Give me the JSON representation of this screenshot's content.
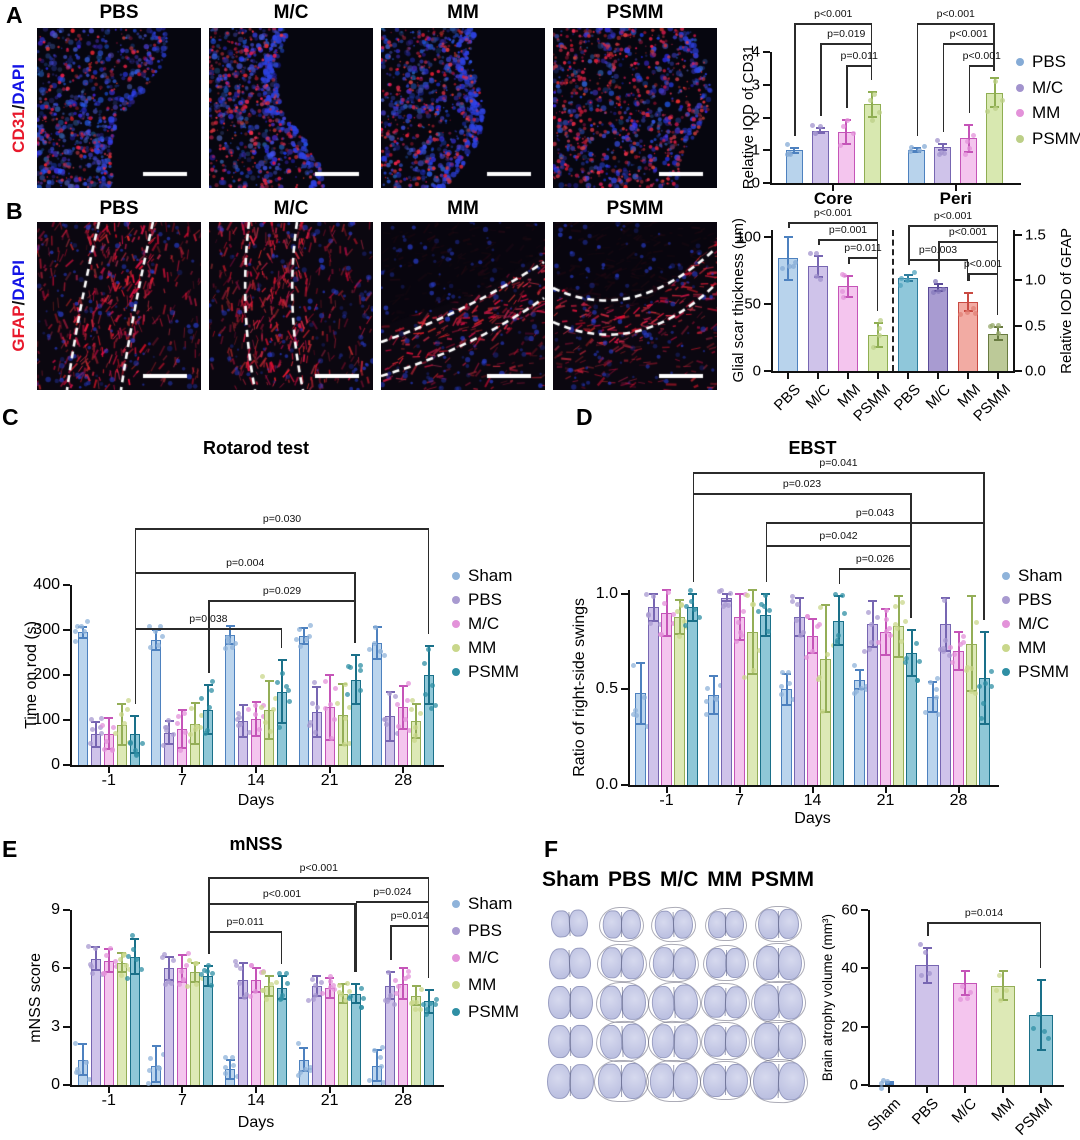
{
  "panels": {
    "A": "A",
    "B": "B",
    "C": "C",
    "D": "D",
    "E": "E",
    "F": "F"
  },
  "panelA": {
    "image_headers": [
      "PBS",
      "M/C",
      "MM",
      "PSMM"
    ],
    "side_label": [
      {
        "text": "CD31",
        "color": "#e8192c"
      },
      {
        "text": "/",
        "color": "#111111"
      },
      {
        "text": "DAPI",
        "color": "#1414e6"
      }
    ]
  },
  "panelB": {
    "image_headers": [
      "PBS",
      "M/C",
      "MM",
      "PSMM"
    ],
    "side_label": [
      {
        "text": "GFAP",
        "color": "#e8192c"
      },
      {
        "text": "/",
        "color": "#111111"
      },
      {
        "text": "DAPI",
        "color": "#1414e6"
      }
    ]
  },
  "panelF": {
    "columns": [
      "Sham",
      "PBS",
      "M/C",
      "MM",
      "PSMM"
    ]
  },
  "chart_data": [
    {
      "id": "cd31",
      "type": "bar",
      "title": "",
      "ylabel": "Relative IOD of CD31",
      "yticks": [
        "0",
        "1",
        "2",
        "3",
        "4"
      ],
      "ylim": [
        0,
        4
      ],
      "categories": [
        "Core",
        "Peri"
      ],
      "series": [
        {
          "name": "PBS",
          "fill": "#b8d3ec",
          "stroke": "#4d81bf",
          "dot": "#85abd6",
          "values": [
            1.0,
            1.02
          ],
          "errors": [
            0.08,
            0.06
          ]
        },
        {
          "name": "M/C",
          "fill": "#cfc3ea",
          "stroke": "#7766b2",
          "dot": "#a293cd",
          "values": [
            1.6,
            1.1
          ],
          "errors": [
            0.07,
            0.08
          ]
        },
        {
          "name": "MM",
          "fill": "#f4c5ee",
          "stroke": "#c554b8",
          "dot": "#e392d9",
          "values": [
            1.55,
            1.36
          ],
          "errors": [
            0.36,
            0.4
          ]
        },
        {
          "name": "PSMM",
          "fill": "#d8e8b0",
          "stroke": "#8fae52",
          "dot": "#bccf87",
          "values": [
            2.4,
            2.76
          ],
          "errors": [
            0.38,
            0.44
          ]
        }
      ],
      "legend": [
        "PBS",
        "M/C",
        "MM",
        "PSMM"
      ],
      "significance": [
        {
          "from": [
            "Core",
            "PBS"
          ],
          "to": [
            "Core",
            "PSMM"
          ],
          "label": "p<0.001",
          "y": 23
        },
        {
          "from": [
            "Core",
            "M/C"
          ],
          "to": [
            "Core",
            "PSMM"
          ],
          "label": "p=0.019",
          "y": 43
        },
        {
          "from": [
            "Core",
            "MM"
          ],
          "to": [
            "Core",
            "PSMM"
          ],
          "label": "p=0.011",
          "y": 65
        },
        {
          "from": [
            "Peri",
            "PBS"
          ],
          "to": [
            "Peri",
            "PSMM"
          ],
          "label": "p<0.001",
          "y": 23
        },
        {
          "from": [
            "Peri",
            "M/C"
          ],
          "to": [
            "Peri",
            "PSMM"
          ],
          "label": "p<0.001",
          "y": 43
        },
        {
          "from": [
            "Peri",
            "MM"
          ],
          "to": [
            "Peri",
            "PSMM"
          ],
          "label": "p<0.001",
          "y": 65
        }
      ]
    },
    {
      "id": "gfap",
      "type": "bar-dual",
      "left_ylabel": "Glial scar thickness (μm)",
      "left_yticks": [
        "0",
        "50",
        "100"
      ],
      "left_ylim": [
        0,
        105
      ],
      "right_ylabel": "Relative IOD of GFAP",
      "right_yticks": [
        "0.0",
        "0.5",
        "1.0",
        "1.5"
      ],
      "right_ylim": [
        0,
        1.55
      ],
      "xticklabels": [
        "PBS",
        "M/C",
        "MM",
        "PSMM",
        "PBS",
        "M/C",
        "MM",
        "PSMM"
      ],
      "bars": [
        {
          "label": "PBS",
          "axis": "left",
          "value": 84,
          "error": 16,
          "fill": "#b8d3ec",
          "stroke": "#4d81bf",
          "dot": "#85abd6"
        },
        {
          "label": "M/C",
          "axis": "left",
          "value": 78,
          "error": 8,
          "fill": "#cfc3ea",
          "stroke": "#7766b2",
          "dot": "#a293cd"
        },
        {
          "label": "MM",
          "axis": "left",
          "value": 63,
          "error": 8,
          "fill": "#f4c5ee",
          "stroke": "#c554b8",
          "dot": "#e392d9"
        },
        {
          "label": "PSMM",
          "axis": "left",
          "value": 27,
          "error": 9,
          "fill": "#d8e8b0",
          "stroke": "#8fae52",
          "dot": "#bccf87"
        },
        {
          "label": "PBS",
          "axis": "right",
          "value": 1.02,
          "error": 0.03,
          "fill": "#8fc7da",
          "stroke": "#2e7d9e",
          "dot": "#4fa3bd"
        },
        {
          "label": "M/C",
          "axis": "right",
          "value": 0.92,
          "error": 0.04,
          "fill": "#a89bd1",
          "stroke": "#5a4a98",
          "dot": "#8679bb"
        },
        {
          "label": "MM",
          "axis": "right",
          "value": 0.76,
          "error": 0.1,
          "fill": "#f2aba3",
          "stroke": "#c94a42",
          "dot": "#e07f74"
        },
        {
          "label": "PSMM",
          "axis": "right",
          "value": 0.41,
          "error": 0.07,
          "fill": "#bcc998",
          "stroke": "#687a40",
          "dot": "#96a86a"
        }
      ],
      "significance": [
        {
          "from": 0,
          "to": 3,
          "label": "p<0.001",
          "y": 25
        },
        {
          "from": 1,
          "to": 3,
          "label": "p=0.001",
          "y": 42
        },
        {
          "from": 2,
          "to": 3,
          "label": "p=0.011",
          "y": 60
        },
        {
          "from": 4,
          "to": 7,
          "label": "p<0.001",
          "y": 28
        },
        {
          "from": 5,
          "to": 7,
          "label": "p<0.001",
          "y": 44
        },
        {
          "from": 4,
          "to": 6,
          "label": "p=0.003",
          "y": 62
        },
        {
          "from": 6,
          "to": 7,
          "label": "p<0.001",
          "y": 76
        }
      ]
    },
    {
      "id": "rotarod",
      "type": "bar-grouped",
      "title": "Rotarod test",
      "ylabel": "Time on rod (s)",
      "xlabel": "Days",
      "yticks": [
        "0",
        "100",
        "200",
        "300",
        "400"
      ],
      "ylim": [
        0,
        400
      ],
      "categories": [
        "-1",
        "7",
        "14",
        "21",
        "28"
      ],
      "series": [
        {
          "name": "Sham",
          "fill": "#bad4ed",
          "stroke": "#4d81bf",
          "dot": "#8fb3da",
          "values": [
            295,
            277,
            289,
            286,
            271
          ],
          "errors": [
            12,
            22,
            20,
            18,
            35
          ]
        },
        {
          "name": "PBS",
          "fill": "#cfc3ea",
          "stroke": "#7766b2",
          "dot": "#a89ad0",
          "values": [
            68,
            72,
            98,
            118,
            108
          ],
          "errors": [
            28,
            25,
            35,
            55,
            55
          ]
        },
        {
          "name": "M/C",
          "fill": "#f4c5ee",
          "stroke": "#c554b8",
          "dot": "#e392d9",
          "values": [
            70,
            80,
            103,
            128,
            128
          ],
          "errors": [
            35,
            42,
            38,
            72,
            48
          ]
        },
        {
          "name": "MM",
          "fill": "#dde9b6",
          "stroke": "#94ae57",
          "dot": "#c9d78b",
          "values": [
            90,
            92,
            122,
            112,
            97
          ],
          "errors": [
            45,
            45,
            65,
            68,
            38
          ]
        },
        {
          "name": "PSMM",
          "fill": "#8fc7d7",
          "stroke": "#1a7089",
          "dot": "#2f8fa4",
          "values": [
            68,
            123,
            163,
            190,
            200
          ],
          "errors": [
            42,
            55,
            70,
            55,
            65
          ]
        }
      ],
      "legend": [
        "Sham",
        "PBS",
        "M/C",
        "MM",
        "PSMM"
      ],
      "significance": [
        {
          "from": [
            "-1",
            "PSMM"
          ],
          "to": [
            "14",
            "PSMM"
          ],
          "label": "p=0.038",
          "y": 228
        },
        {
          "from": [
            "7",
            "PSMM"
          ],
          "to": [
            "21",
            "PSMM"
          ],
          "label": "p=0.029",
          "y": 200
        },
        {
          "from": [
            "-1",
            "PSMM"
          ],
          "to": [
            "21",
            "PSMM"
          ],
          "label": "p=0.004",
          "y": 172
        },
        {
          "from": [
            "-1",
            "PSMM"
          ],
          "to": [
            "28",
            "PSMM"
          ],
          "label": "p=0.030",
          "y": 128
        }
      ]
    },
    {
      "id": "ebst",
      "type": "bar-grouped",
      "title": "EBST",
      "ylabel": "Ratio of right-side swings",
      "xlabel": "Days",
      "yticks": [
        "0.0",
        "0.5",
        "1.0"
      ],
      "ylim": [
        0,
        1.02
      ],
      "categories": [
        "-1",
        "7",
        "14",
        "21",
        "28"
      ],
      "series": [
        {
          "name": "Sham",
          "fill": "#bad4ed",
          "stroke": "#4d81bf",
          "dot": "#8fb3da",
          "values": [
            0.48,
            0.47,
            0.5,
            0.55,
            0.46
          ],
          "errors": [
            0.16,
            0.1,
            0.08,
            0.05,
            0.08
          ]
        },
        {
          "name": "PBS",
          "fill": "#cfc3ea",
          "stroke": "#7766b2",
          "dot": "#a89ad0",
          "values": [
            0.93,
            0.98,
            0.88,
            0.84,
            0.84
          ],
          "errors": [
            0.07,
            0.02,
            0.1,
            0.12,
            0.14
          ]
        },
        {
          "name": "M/C",
          "fill": "#f4c5ee",
          "stroke": "#c554b8",
          "dot": "#e392d9",
          "values": [
            0.9,
            0.88,
            0.78,
            0.8,
            0.7
          ],
          "errors": [
            0.12,
            0.12,
            0.09,
            0.12,
            0.1
          ]
        },
        {
          "name": "MM",
          "fill": "#dde9b6",
          "stroke": "#94ae57",
          "dot": "#c9d78b",
          "values": [
            0.88,
            0.8,
            0.66,
            0.83,
            0.74
          ],
          "errors": [
            0.09,
            0.22,
            0.28,
            0.16,
            0.25
          ]
        },
        {
          "name": "PSMM",
          "fill": "#8fc7d7",
          "stroke": "#1a7089",
          "dot": "#2f8fa4",
          "values": [
            0.93,
            0.89,
            0.86,
            0.69,
            0.56
          ],
          "errors": [
            0.07,
            0.11,
            0.13,
            0.12,
            0.24
          ]
        }
      ],
      "legend": [
        "Sham",
        "PBS",
        "M/C",
        "MM",
        "PSMM"
      ],
      "significance": [
        {
          "from": [
            "14",
            "PSMM"
          ],
          "to": [
            "21",
            "PSMM"
          ],
          "label": "p=0.026",
          "y": 168
        },
        {
          "from": [
            "7",
            "PSMM"
          ],
          "to": [
            "21",
            "PSMM"
          ],
          "label": "p=0.042",
          "y": 145
        },
        {
          "from": [
            "7",
            "PSMM"
          ],
          "to": [
            "28",
            "PSMM"
          ],
          "label": "p=0.043",
          "y": 122
        },
        {
          "from": [
            "-1",
            "PSMM"
          ],
          "to": [
            "21",
            "PSMM"
          ],
          "label": "p=0.023",
          "y": 93
        },
        {
          "from": [
            "-1",
            "PSMM"
          ],
          "to": [
            "28",
            "PSMM"
          ],
          "label": "p=0.041",
          "y": 72
        }
      ]
    },
    {
      "id": "mnss",
      "type": "bar-grouped",
      "title": "mNSS",
      "ylabel": "mNSS score",
      "xlabel": "Days",
      "yticks": [
        "0",
        "3",
        "6",
        "9"
      ],
      "ylim": [
        0,
        9
      ],
      "categories": [
        "-1",
        "7",
        "14",
        "21",
        "28"
      ],
      "series": [
        {
          "name": "Sham",
          "fill": "#bad4ed",
          "stroke": "#4d81bf",
          "dot": "#8fb3da",
          "values": [
            1.3,
            1.0,
            0.8,
            1.3,
            1.0
          ],
          "errors": [
            0.8,
            1.0,
            0.5,
            0.6,
            0.8
          ]
        },
        {
          "name": "PBS",
          "fill": "#cfc3ea",
          "stroke": "#7766b2",
          "dot": "#a89ad0",
          "values": [
            6.5,
            6.0,
            5.4,
            5.1,
            5.1
          ],
          "errors": [
            0.6,
            0.6,
            0.9,
            0.5,
            0.7
          ]
        },
        {
          "name": "M/C",
          "fill": "#f4c5ee",
          "stroke": "#c554b8",
          "dot": "#e392d9",
          "values": [
            6.4,
            6.0,
            5.4,
            5.0,
            5.2
          ],
          "errors": [
            0.6,
            0.7,
            0.6,
            0.5,
            0.8
          ]
        },
        {
          "name": "MM",
          "fill": "#dde9b6",
          "stroke": "#94ae57",
          "dot": "#c9d78b",
          "values": [
            6.3,
            5.8,
            5.1,
            4.7,
            4.6
          ],
          "errors": [
            0.5,
            0.5,
            0.5,
            0.5,
            0.5
          ]
        },
        {
          "name": "PSMM",
          "fill": "#8fc7d7",
          "stroke": "#1a7089",
          "dot": "#2f8fa4",
          "values": [
            6.6,
            5.6,
            5.0,
            4.7,
            4.3
          ],
          "errors": [
            0.9,
            0.5,
            0.6,
            0.5,
            0.6
          ]
        }
      ],
      "legend": [
        "Sham",
        "PBS",
        "M/C",
        "MM",
        "PSMM"
      ],
      "significance": [
        {
          "from": [
            "7",
            "PSMM"
          ],
          "to": [
            "14",
            "PSMM"
          ],
          "label": "p=0.011",
          "y": 131
        },
        {
          "from": [
            "7",
            "PSMM"
          ],
          "to": [
            "21",
            "PSMM"
          ],
          "label": "p<0.001",
          "y": 103
        },
        {
          "from": [
            "7",
            "PSMM"
          ],
          "to": [
            "28",
            "PSMM"
          ],
          "label": "p<0.001",
          "y": 77
        },
        {
          "from": [
            "21",
            "PSMM"
          ],
          "to": [
            "28",
            "PSMM"
          ],
          "label": "p=0.024",
          "y": 101
        },
        {
          "from": [
            "28",
            "PBS"
          ],
          "to": [
            "28",
            "PSMM"
          ],
          "label": "p=0.014",
          "y": 125
        }
      ]
    },
    {
      "id": "atrophy",
      "type": "bar",
      "title": "",
      "ylabel": "Brain atrophy volume (mm³)",
      "yticks": [
        "0",
        "20",
        "40",
        "60"
      ],
      "ylim": [
        0,
        60
      ],
      "categories": [
        "Sham",
        "PBS",
        "M/C",
        "MM",
        "PSMM"
      ],
      "series": [
        {
          "name": "vol",
          "values": [
            0,
            41,
            35,
            34,
            24
          ],
          "errors": [
            0.5,
            6,
            4,
            5,
            12
          ],
          "fills": [
            "#bad4ed",
            "#cfc3ea",
            "#f4c5ee",
            "#dde9b6",
            "#8fc7d7"
          ],
          "strokes": [
            "#4d81bf",
            "#7766b2",
            "#c554b8",
            "#94ae57",
            "#1a7089"
          ],
          "dots": [
            "#85abd6",
            "#a293cd",
            "#e392d9",
            "#c9d78b",
            "#2f8fa4"
          ]
        }
      ],
      "significance": [
        {
          "from": [
            "PBS",
            "vol"
          ],
          "to": [
            "PSMM",
            "vol"
          ],
          "label": "p=0.014",
          "y": 122
        }
      ]
    }
  ]
}
